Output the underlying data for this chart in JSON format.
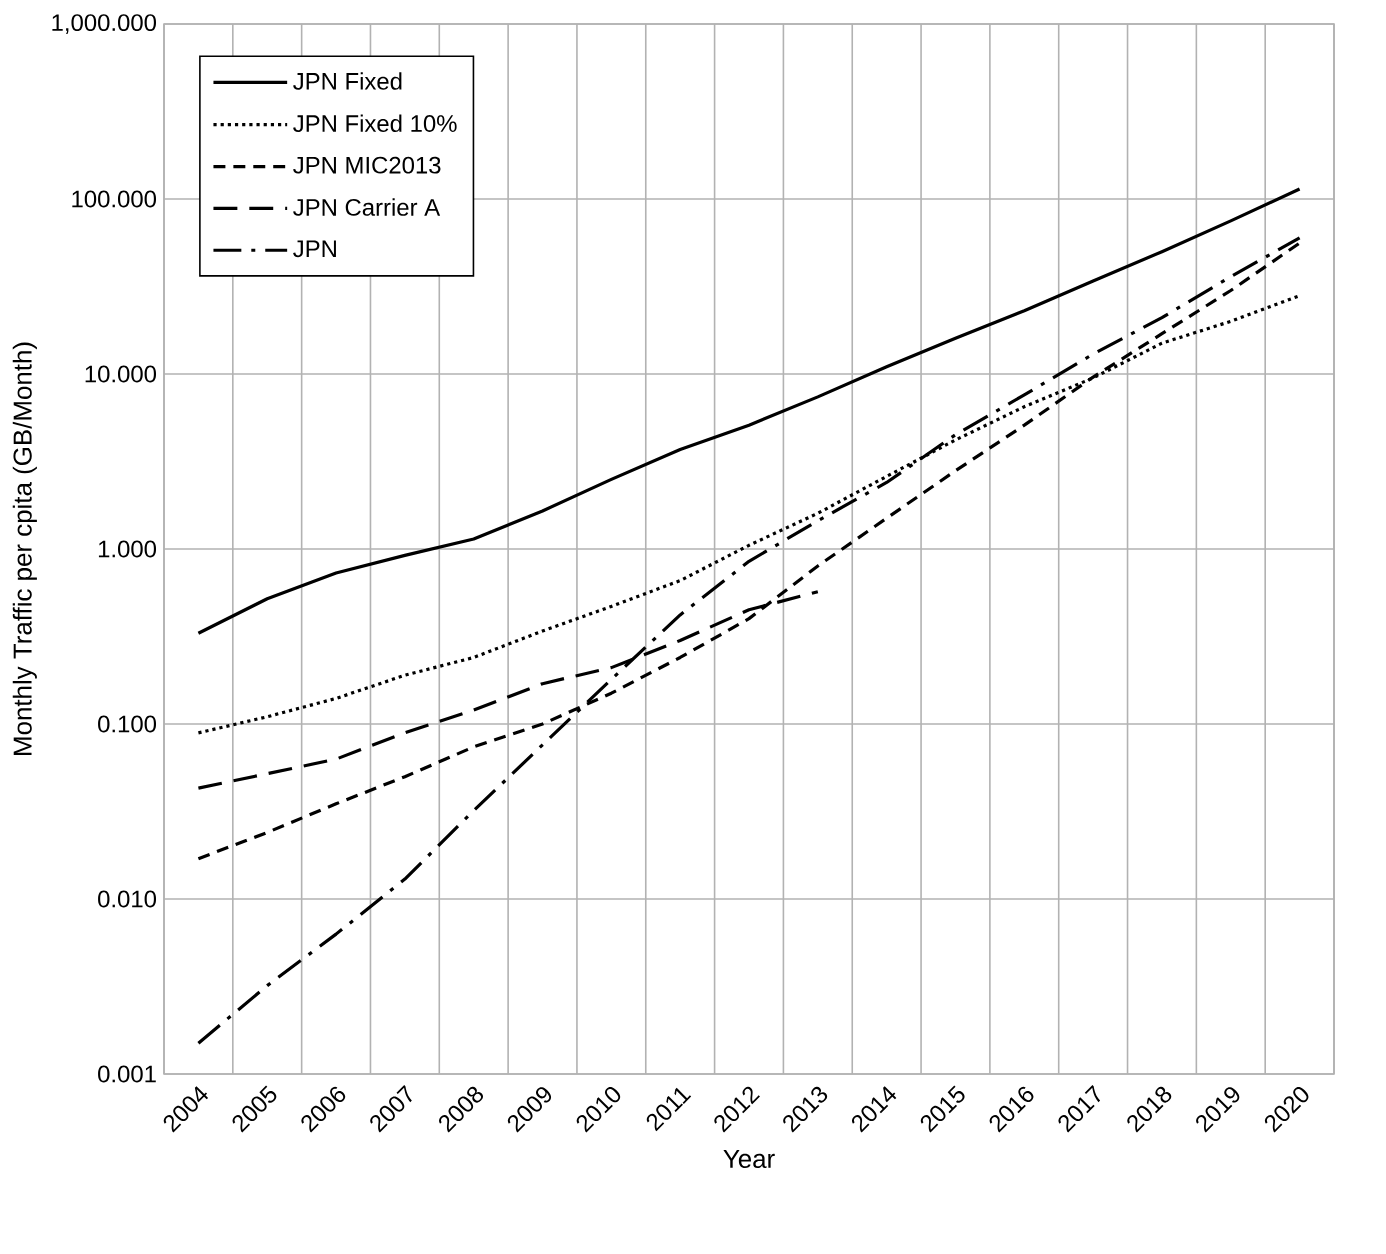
{
  "chart_data": {
    "type": "line",
    "xlabel": "Year",
    "ylabel": "Monthly Traffic  per cpita   (GB/Month)",
    "categories": [
      "2004",
      "2005",
      "2006",
      "2007",
      "2008",
      "2009",
      "2010",
      "2011",
      "2012",
      "2013",
      "2014",
      "2015",
      "2016",
      "2017",
      "2018",
      "2019",
      "2020"
    ],
    "log": "y",
    "ylim": [
      0.001,
      1000
    ],
    "yticks": [
      {
        "value": 0.001,
        "label": "0.001"
      },
      {
        "value": 0.01,
        "label": "0.010"
      },
      {
        "value": 0.1,
        "label": "0.100"
      },
      {
        "value": 1,
        "label": "1.000"
      },
      {
        "value": 10,
        "label": "10.000"
      },
      {
        "value": 100,
        "label": "100.000"
      },
      {
        "value": 1000,
        "label": "1,000.000"
      }
    ],
    "grid": true,
    "legend": "top left",
    "marker": "none",
    "series": [
      {
        "name": "JPN Fixed",
        "color": "#000000",
        "line_style": "solid",
        "values": [
          0.33,
          0.52,
          0.73,
          0.92,
          1.14,
          1.65,
          2.5,
          3.7,
          5.1,
          7.4,
          11,
          16,
          23,
          34,
          50,
          75,
          114
        ]
      },
      {
        "name": "JPN Fixed 10%",
        "color": "#000000",
        "line_style": "dotted",
        "values": [
          0.089,
          0.11,
          0.14,
          0.19,
          0.24,
          0.34,
          0.47,
          0.66,
          1.05,
          1.6,
          2.6,
          4.2,
          6.5,
          9.5,
          15,
          20,
          28
        ]
      },
      {
        "name": "JPN MIC2013",
        "color": "#000000",
        "line_style": "dashed",
        "values": [
          0.017,
          0.024,
          0.035,
          0.05,
          0.074,
          0.1,
          0.15,
          0.24,
          0.4,
          0.8,
          1.5,
          2.8,
          5.1,
          9.6,
          17,
          30,
          56
        ]
      },
      {
        "name": "JPN Carrier A",
        "color": "#000000",
        "line_style": "longdashed",
        "values": [
          0.043,
          0.052,
          0.063,
          0.089,
          0.12,
          0.17,
          0.21,
          0.3,
          0.45,
          0.57,
          null,
          null,
          null,
          null,
          null,
          null,
          null
        ]
      },
      {
        "name": "JPN",
        "color": "#000000",
        "line_style": "dashdot",
        "values": [
          0.0015,
          0.0032,
          0.0063,
          0.013,
          0.032,
          0.076,
          0.18,
          0.42,
          0.85,
          1.45,
          2.4,
          4.5,
          7.6,
          13,
          21,
          36,
          60
        ]
      }
    ]
  }
}
